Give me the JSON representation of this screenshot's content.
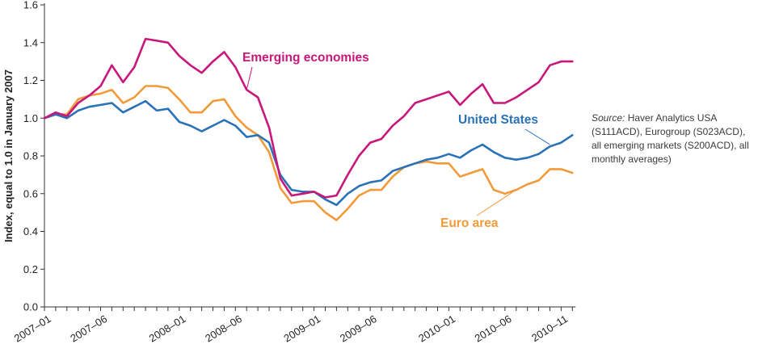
{
  "source_note": {
    "label": "Source:",
    "text": "Haver Analytics USA (S111ACD), Eurogroup (S023ACD), all emerging markets (S200ACD), all monthly averages)"
  },
  "chart_data": {
    "type": "line",
    "ylabel": "Index,  equal to 1.0 in January 2007",
    "xlabel": "",
    "ylim": [
      0,
      1.6
    ],
    "y_ticks": [
      "0.0",
      "0.2",
      "0.4",
      "0.6",
      "0.8",
      "1.0",
      "1.2",
      "1.4",
      "1.6"
    ],
    "x_ticks": [
      {
        "index": 0,
        "label": "2007–01"
      },
      {
        "index": 5,
        "label": "2007–06"
      },
      {
        "index": 12,
        "label": "2008–01"
      },
      {
        "index": 17,
        "label": "2008–06"
      },
      {
        "index": 24,
        "label": "2009–01"
      },
      {
        "index": 29,
        "label": "2009–06"
      },
      {
        "index": 36,
        "label": "2010–01"
      },
      {
        "index": 41,
        "label": "2010–06"
      },
      {
        "index": 46,
        "label": "2010–11"
      }
    ],
    "x": [
      "2007-01",
      "2007-02",
      "2007-03",
      "2007-04",
      "2007-05",
      "2007-06",
      "2007-07",
      "2007-08",
      "2007-09",
      "2007-10",
      "2007-11",
      "2007-12",
      "2008-01",
      "2008-02",
      "2008-03",
      "2008-04",
      "2008-05",
      "2008-06",
      "2008-07",
      "2008-08",
      "2008-09",
      "2008-10",
      "2008-11",
      "2008-12",
      "2009-01",
      "2009-02",
      "2009-03",
      "2009-04",
      "2009-05",
      "2009-06",
      "2009-07",
      "2009-08",
      "2009-09",
      "2009-10",
      "2009-11",
      "2009-12",
      "2010-01",
      "2010-02",
      "2010-03",
      "2010-04",
      "2010-05",
      "2010-06",
      "2010-07",
      "2010-08",
      "2010-09",
      "2010-10",
      "2010-11",
      "2010-12"
    ],
    "grid": false,
    "series": [
      {
        "name": "Emerging economies",
        "color": "#c8177a",
        "values": [
          1.0,
          1.03,
          1.01,
          1.08,
          1.12,
          1.17,
          1.28,
          1.19,
          1.27,
          1.42,
          1.41,
          1.4,
          1.33,
          1.28,
          1.24,
          1.3,
          1.35,
          1.27,
          1.15,
          1.11,
          0.95,
          0.68,
          0.59,
          0.6,
          0.61,
          0.58,
          0.59,
          0.7,
          0.8,
          0.87,
          0.89,
          0.96,
          1.01,
          1.08,
          1.1,
          1.12,
          1.14,
          1.07,
          1.13,
          1.18,
          1.08,
          1.08,
          1.11,
          1.15,
          1.19,
          1.28,
          1.3,
          1.3
        ]
      },
      {
        "name": "United States",
        "color": "#2a72b8",
        "values": [
          1.0,
          1.02,
          1.0,
          1.04,
          1.06,
          1.07,
          1.08,
          1.03,
          1.06,
          1.09,
          1.04,
          1.05,
          0.98,
          0.96,
          0.93,
          0.96,
          0.99,
          0.96,
          0.9,
          0.91,
          0.87,
          0.7,
          0.62,
          0.61,
          0.61,
          0.57,
          0.54,
          0.6,
          0.64,
          0.66,
          0.67,
          0.72,
          0.74,
          0.76,
          0.78,
          0.79,
          0.81,
          0.79,
          0.83,
          0.86,
          0.82,
          0.79,
          0.78,
          0.79,
          0.81,
          0.85,
          0.87,
          0.91
        ]
      },
      {
        "name": "Euro area",
        "color": "#f29a3a",
        "values": [
          1.0,
          1.02,
          1.02,
          1.1,
          1.12,
          1.13,
          1.15,
          1.08,
          1.11,
          1.17,
          1.17,
          1.16,
          1.1,
          1.03,
          1.03,
          1.09,
          1.1,
          1.01,
          0.95,
          0.91,
          0.82,
          0.63,
          0.55,
          0.56,
          0.56,
          0.5,
          0.46,
          0.52,
          0.59,
          0.62,
          0.62,
          0.69,
          0.74,
          0.76,
          0.77,
          0.76,
          0.76,
          0.69,
          0.71,
          0.73,
          0.62,
          0.6,
          0.62,
          0.65,
          0.67,
          0.73,
          0.73,
          0.71
        ]
      }
    ],
    "annotations": [
      {
        "series": "Emerging economies",
        "text": "Emerging economies",
        "point_index": 18,
        "value": 1.15
      },
      {
        "series": "United States",
        "text": "United States",
        "point_index": 45,
        "value": 0.86
      },
      {
        "series": "Euro area",
        "text": "Euro area",
        "point_index": 42,
        "value": 0.62
      }
    ]
  }
}
